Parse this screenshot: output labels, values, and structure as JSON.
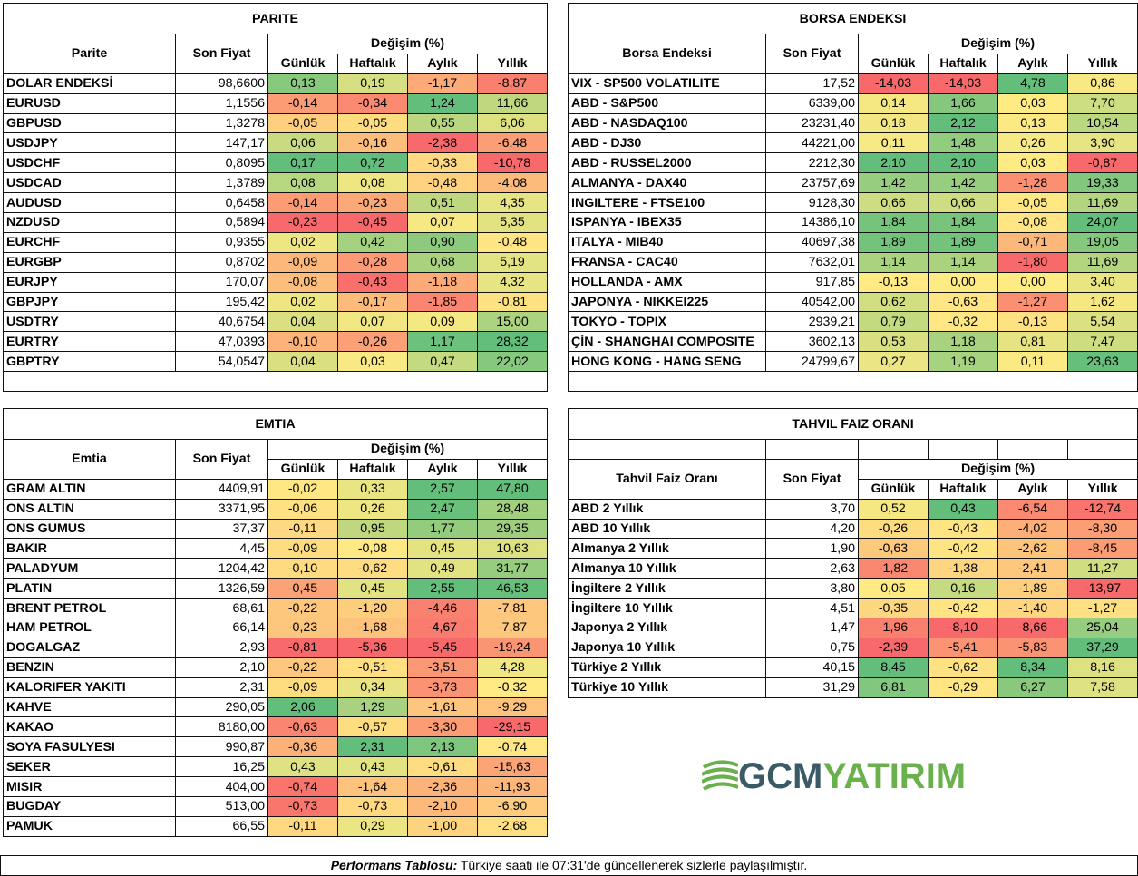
{
  "parite": {
    "title": "PARITE",
    "col_name": "Parite",
    "col_price": "Son Fiyat",
    "col_change": "Değişim (%)",
    "col_d": "Günlük",
    "col_w": "Haftalık",
    "col_m": "Aylık",
    "col_y": "Yıllık",
    "rows": [
      {
        "name": "DOLAR ENDEKSİ",
        "price": "98,6600",
        "d": "0,13",
        "w": "0,19",
        "m": "-1,17",
        "y": "-8,87"
      },
      {
        "name": "EURUSD",
        "price": "1,1556",
        "d": "-0,14",
        "w": "-0,34",
        "m": "1,24",
        "y": "11,66"
      },
      {
        "name": "GBPUSD",
        "price": "1,3278",
        "d": "-0,05",
        "w": "-0,05",
        "m": "0,55",
        "y": "6,06"
      },
      {
        "name": "USDJPY",
        "price": "147,17",
        "d": "0,06",
        "w": "-0,16",
        "m": "-2,38",
        "y": "-6,48"
      },
      {
        "name": "USDCHF",
        "price": "0,8095",
        "d": "0,17",
        "w": "0,72",
        "m": "-0,33",
        "y": "-10,78"
      },
      {
        "name": "USDCAD",
        "price": "1,3789",
        "d": "0,08",
        "w": "0,08",
        "m": "-0,48",
        "y": "-4,08"
      },
      {
        "name": "AUDUSD",
        "price": "0,6458",
        "d": "-0,14",
        "w": "-0,23",
        "m": "0,51",
        "y": "4,35"
      },
      {
        "name": "NZDUSD",
        "price": "0,5894",
        "d": "-0,23",
        "w": "-0,45",
        "m": "0,07",
        "y": "5,35"
      },
      {
        "name": "EURCHF",
        "price": "0,9355",
        "d": "0,02",
        "w": "0,42",
        "m": "0,90",
        "y": "-0,48"
      },
      {
        "name": "EURGBP",
        "price": "0,8702",
        "d": "-0,09",
        "w": "-0,28",
        "m": "0,68",
        "y": "5,19"
      },
      {
        "name": "EURJPY",
        "price": "170,07",
        "d": "-0,08",
        "w": "-0,43",
        "m": "-1,18",
        "y": "4,32"
      },
      {
        "name": "GBPJPY",
        "price": "195,42",
        "d": "0,02",
        "w": "-0,17",
        "m": "-1,85",
        "y": "-0,81"
      },
      {
        "name": "USDTRY",
        "price": "40,6754",
        "d": "0,04",
        "w": "0,07",
        "m": "0,09",
        "y": "15,00"
      },
      {
        "name": "EURTRY",
        "price": "47,0393",
        "d": "-0,10",
        "w": "-0,26",
        "m": "1,17",
        "y": "28,32"
      },
      {
        "name": "GBPTRY",
        "price": "54,0547",
        "d": "0,04",
        "w": "0,03",
        "m": "0,47",
        "y": "22,02"
      }
    ]
  },
  "borsa": {
    "title": "BORSA ENDEKSI",
    "col_name": "Borsa Endeksi",
    "col_price": "Son Fiyat",
    "col_change": "Değişim (%)",
    "col_d": "Günlük",
    "col_w": "Haftalık",
    "col_m": "Aylık",
    "col_y": "Yıllık",
    "rows": [
      {
        "name": "VIX  - SP500 VOLATILITE",
        "price": "17,52",
        "d": "-14,03",
        "w": "-14,03",
        "m": "4,78",
        "y": "0,86"
      },
      {
        "name": "ABD - S&P500",
        "price": "6339,00",
        "d": "0,14",
        "w": "1,66",
        "m": "0,03",
        "y": "7,70"
      },
      {
        "name": "ABD - NASDAQ100",
        "price": "23231,40",
        "d": "0,18",
        "w": "2,12",
        "m": "0,13",
        "y": "10,54"
      },
      {
        "name": "ABD - DJ30",
        "price": "44221,00",
        "d": "0,11",
        "w": "1,48",
        "m": "0,26",
        "y": "3,90"
      },
      {
        "name": "ABD - RUSSEL2000",
        "price": "2212,30",
        "d": "2,10",
        "w": "2,10",
        "m": "0,03",
        "y": "-0,87"
      },
      {
        "name": "ALMANYA - DAX40",
        "price": "23757,69",
        "d": "1,42",
        "w": "1,42",
        "m": "-1,28",
        "y": "19,33"
      },
      {
        "name": "INGILTERE - FTSE100",
        "price": "9128,30",
        "d": "0,66",
        "w": "0,66",
        "m": "-0,05",
        "y": "11,69"
      },
      {
        "name": "ISPANYA - IBEX35",
        "price": "14386,10",
        "d": "1,84",
        "w": "1,84",
        "m": "-0,08",
        "y": "24,07"
      },
      {
        "name": "ITALYA - MIB40",
        "price": "40697,38",
        "d": "1,89",
        "w": "1,89",
        "m": "-0,71",
        "y": "19,05"
      },
      {
        "name": "FRANSA - CAC40",
        "price": "7632,01",
        "d": "1,14",
        "w": "1,14",
        "m": "-1,80",
        "y": "11,69"
      },
      {
        "name": "HOLLANDA - AMX",
        "price": "917,85",
        "d": "-0,13",
        "w": "0,00",
        "m": "0,00",
        "y": "3,40"
      },
      {
        "name": "JAPONYA - NIKKEI225",
        "price": "40542,00",
        "d": "0,62",
        "w": "-0,63",
        "m": "-1,27",
        "y": "1,62"
      },
      {
        "name": "TOKYO - TOPIX",
        "price": "2939,21",
        "d": "0,79",
        "w": "-0,32",
        "m": "-0,13",
        "y": "5,54"
      },
      {
        "name": "ÇİN - SHANGHAI COMPOSITE",
        "price": "3602,13",
        "d": "0,53",
        "w": "1,18",
        "m": "0,81",
        "y": "7,47"
      },
      {
        "name": "HONG KONG - HANG SENG",
        "price": "24799,67",
        "d": "0,27",
        "w": "1,19",
        "m": "0,11",
        "y": "23,63"
      }
    ]
  },
  "emtia": {
    "title": "EMTIA",
    "col_name": "Emtia",
    "col_price": "Son Fiyat",
    "col_change": "Değişim (%)",
    "col_d": "Günlük",
    "col_w": "Haftalık",
    "col_m": "Aylık",
    "col_y": "Yıllık",
    "rows": [
      {
        "name": "GRAM ALTIN",
        "price": "4409,91",
        "d": "-0,02",
        "w": "0,33",
        "m": "2,57",
        "y": "47,80"
      },
      {
        "name": "ONS ALTIN",
        "price": "3371,95",
        "d": "-0,06",
        "w": "0,26",
        "m": "2,47",
        "y": "28,48"
      },
      {
        "name": "ONS GUMUS",
        "price": "37,37",
        "d": "-0,11",
        "w": "0,95",
        "m": "1,77",
        "y": "29,35"
      },
      {
        "name": "BAKIR",
        "price": "4,45",
        "d": "-0,09",
        "w": "-0,08",
        "m": "0,45",
        "y": "10,63"
      },
      {
        "name": "PALADYUM",
        "price": "1204,42",
        "d": "-0,10",
        "w": "-0,62",
        "m": "0,49",
        "y": "31,77"
      },
      {
        "name": "PLATIN",
        "price": "1326,59",
        "d": "-0,45",
        "w": "0,45",
        "m": "2,55",
        "y": "46,53"
      },
      {
        "name": "BRENT PETROL",
        "price": "68,61",
        "d": "-0,22",
        "w": "-1,20",
        "m": "-4,46",
        "y": "-7,81"
      },
      {
        "name": "HAM PETROL",
        "price": "66,14",
        "d": "-0,23",
        "w": "-1,68",
        "m": "-4,67",
        "y": "-7,87"
      },
      {
        "name": "DOGALGAZ",
        "price": "2,93",
        "d": "-0,81",
        "w": "-5,36",
        "m": "-5,45",
        "y": "-19,24"
      },
      {
        "name": "BENZIN",
        "price": "2,10",
        "d": "-0,22",
        "w": "-0,51",
        "m": "-3,51",
        "y": "4,28"
      },
      {
        "name": "KALORIFER YAKITI",
        "price": "2,31",
        "d": "-0,09",
        "w": "0,34",
        "m": "-3,73",
        "y": "-0,32"
      },
      {
        "name": "KAHVE",
        "price": "290,05",
        "d": "2,06",
        "w": "1,29",
        "m": "-1,61",
        "y": "-9,29"
      },
      {
        "name": "KAKAO",
        "price": "8180,00",
        "d": "-0,63",
        "w": "-0,57",
        "m": "-3,30",
        "y": "-29,15"
      },
      {
        "name": "SOYA FASULYESI",
        "price": "990,87",
        "d": "-0,36",
        "w": "2,31",
        "m": "2,13",
        "y": "-0,74"
      },
      {
        "name": "SEKER",
        "price": "16,25",
        "d": "0,43",
        "w": "0,43",
        "m": "-0,61",
        "y": "-15,63"
      },
      {
        "name": "MISIR",
        "price": "404,00",
        "d": "-0,74",
        "w": "-1,64",
        "m": "-2,36",
        "y": "-11,93"
      },
      {
        "name": "BUGDAY",
        "price": "513,00",
        "d": "-0,73",
        "w": "-0,73",
        "m": "-2,10",
        "y": "-6,90"
      },
      {
        "name": "PAMUK",
        "price": "66,55",
        "d": "-0,11",
        "w": "0,29",
        "m": "-1,00",
        "y": "-2,68"
      }
    ]
  },
  "tahvil": {
    "title": "TAHVIL FAIZ ORANI",
    "col_name": "Tahvil Faiz Oranı",
    "col_price": "Son Fiyat",
    "col_change": "Değişim (%)",
    "col_d": "Günlük",
    "col_w": "Haftalık",
    "col_m": "Aylık",
    "col_y": "Yıllık",
    "rows": [
      {
        "name": "ABD 2 Yıllık",
        "price": "3,70",
        "d": "0,52",
        "w": "0,43",
        "m": "-6,54",
        "y": "-12,74"
      },
      {
        "name": "ABD 10 Yıllık",
        "price": "4,20",
        "d": "-0,26",
        "w": "-0,43",
        "m": "-4,02",
        "y": "-8,30"
      },
      {
        "name": "Almanya 2 Yıllık",
        "price": "1,90",
        "d": "-0,63",
        "w": "-0,42",
        "m": "-2,62",
        "y": "-8,45"
      },
      {
        "name": "Almanya 10 Yıllık",
        "price": "2,63",
        "d": "-1,82",
        "w": "-1,38",
        "m": "-2,41",
        "y": "11,27"
      },
      {
        "name": "İngiltere 2 Yıllık",
        "price": "3,80",
        "d": "0,05",
        "w": "0,16",
        "m": "-1,89",
        "y": "-13,97"
      },
      {
        "name": "İngiltere 10 Yıllık",
        "price": "4,51",
        "d": "-0,35",
        "w": "-0,42",
        "m": "-1,40",
        "y": "-1,27"
      },
      {
        "name": "Japonya 2 Yıllık",
        "price": "1,47",
        "d": "-1,96",
        "w": "-8,10",
        "m": "-8,66",
        "y": "25,04"
      },
      {
        "name": "Japonya 10 Yıllık",
        "price": "0,75",
        "d": "-2,39",
        "w": "-5,41",
        "m": "-5,83",
        "y": "37,29"
      },
      {
        "name": "Türkiye 2 Yıllık",
        "price": "40,15",
        "d": "8,45",
        "w": "-0,62",
        "m": "8,34",
        "y": "8,16"
      },
      {
        "name": "Türkiye 10 Yıllık",
        "price": "31,29",
        "d": "6,81",
        "w": "-0,29",
        "m": "6,27",
        "y": "7,58"
      }
    ]
  },
  "logo": {
    "part1": "GCM",
    "part2": "YATIRIM"
  },
  "footer": {
    "bold": "Performans Tablosu:",
    "text": " Türkiye saati ile 07:31'de güncellenerek sizlerle paylaşılmıştır."
  },
  "colors": {
    "red": "#f8696b",
    "orange": "#fbaa77",
    "yellow": "#ffeb84",
    "lightgreen": "#b1d580",
    "green": "#63be7b"
  }
}
